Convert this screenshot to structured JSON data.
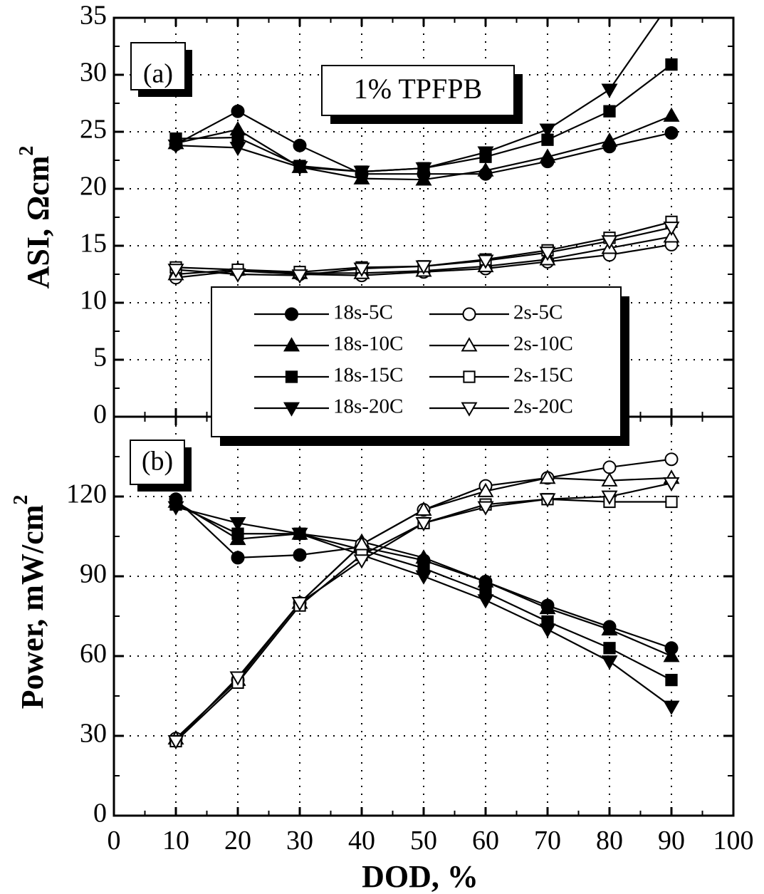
{
  "chart_data": {
    "type": "line",
    "x": [
      10,
      20,
      30,
      40,
      50,
      60,
      70,
      80,
      90
    ],
    "xlabel": "DOD, %",
    "xlim": [
      0,
      100
    ],
    "xticks": [
      "0",
      "10",
      "20",
      "30",
      "40",
      "50",
      "60",
      "70",
      "80",
      "90",
      "100"
    ],
    "grid": true,
    "legend": {
      "placement": "center-left, straddling both panels",
      "entries": [
        "18s-5C",
        "2s-5C",
        "18s-10C",
        "2s-10C",
        "18s-15C",
        "2s-15C",
        "18s-20C",
        "2s-20C"
      ]
    },
    "panels": [
      {
        "label": "(a)",
        "annotation": "1% TPFPB",
        "ylabel_main": "ASI, Ωcm",
        "ylabel_sup": "2",
        "ylim": [
          0,
          35
        ],
        "yticks": [
          "0",
          "5",
          "10",
          "15",
          "20",
          "25",
          "30",
          "35"
        ],
        "series": [
          {
            "name": "18s-5C",
            "marker": "circle",
            "filled": true,
            "values": [
              23.9,
              26.8,
              23.8,
              21.3,
              21.3,
              21.3,
              22.4,
              23.7,
              24.9
            ]
          },
          {
            "name": "18s-10C",
            "marker": "triangle-up",
            "filled": true,
            "values": [
              24.0,
              25.2,
              21.9,
              20.9,
              20.8,
              21.6,
              22.8,
              24.2,
              26.4
            ]
          },
          {
            "name": "18s-15C",
            "marker": "square",
            "filled": true,
            "values": [
              24.4,
              24.5,
              22.0,
              21.5,
              21.8,
              22.8,
              24.3,
              26.8,
              30.9
            ]
          },
          {
            "name": "18s-20C",
            "marker": "triangle-down",
            "filled": true,
            "values": [
              23.8,
              23.6,
              21.9,
              21.5,
              21.8,
              23.2,
              25.2,
              28.7,
              36.5
            ]
          },
          {
            "name": "2s-5C",
            "marker": "circle",
            "filled": false,
            "values": [
              12.2,
              12.8,
              12.5,
              12.4,
              12.7,
              13.0,
              13.6,
              14.2,
              15.1
            ]
          },
          {
            "name": "2s-10C",
            "marker": "triangle-up",
            "filled": false,
            "values": [
              12.5,
              12.9,
              12.6,
              12.6,
              12.8,
              13.2,
              13.8,
              14.8,
              15.8
            ]
          },
          {
            "name": "2s-15C",
            "marker": "square",
            "filled": false,
            "values": [
              13.1,
              12.9,
              12.7,
              13.1,
              13.2,
              13.8,
              14.6,
              15.7,
              17.1
            ]
          },
          {
            "name": "2s-20C",
            "marker": "triangle-down",
            "filled": false,
            "values": [
              12.9,
              12.5,
              12.4,
              13.0,
              13.2,
              13.7,
              14.4,
              15.4,
              16.6
            ]
          }
        ]
      },
      {
        "label": "(b)",
        "ylabel_main": "Power, mW/cm",
        "ylabel_sup": "2",
        "ylim": [
          0,
          150
        ],
        "yticks": [
          "0",
          "30",
          "60",
          "90",
          "120"
        ],
        "series": [
          {
            "name": "18s-5C",
            "marker": "circle",
            "filled": true,
            "values": [
              119,
              97,
              98,
              101,
              96,
              88,
              79,
              71,
              63
            ]
          },
          {
            "name": "18s-10C",
            "marker": "triangle-up",
            "filled": true,
            "values": [
              118,
              104,
              106,
              103,
              97,
              88,
              78,
              70,
              60
            ]
          },
          {
            "name": "18s-15C",
            "marker": "square",
            "filled": true,
            "values": [
              117,
              106,
              106,
              100,
              93,
              84,
              73,
              63,
              51
            ]
          },
          {
            "name": "18s-20C",
            "marker": "triangle-down",
            "filled": true,
            "values": [
              116,
              110,
              106,
              98,
              90,
              81,
              70,
              58,
              41
            ]
          },
          {
            "name": "2s-5C",
            "marker": "circle",
            "filled": false,
            "values": [
              29,
              51,
              80,
              102,
              115,
              124,
              127,
              131,
              134
            ]
          },
          {
            "name": "2s-10C",
            "marker": "triangle-up",
            "filled": false,
            "values": [
              29,
              51,
              80,
              102,
              115,
              122,
              127,
              126,
              127
            ]
          },
          {
            "name": "2s-15C",
            "marker": "square",
            "filled": false,
            "values": [
              28,
              50,
              79,
              98,
              110,
              117,
              119,
              118,
              118
            ]
          },
          {
            "name": "2s-20C",
            "marker": "triangle-down",
            "filled": false,
            "values": [
              28,
              52,
              80,
              96,
              110,
              116,
              119,
              120,
              125
            ]
          }
        ]
      }
    ]
  }
}
